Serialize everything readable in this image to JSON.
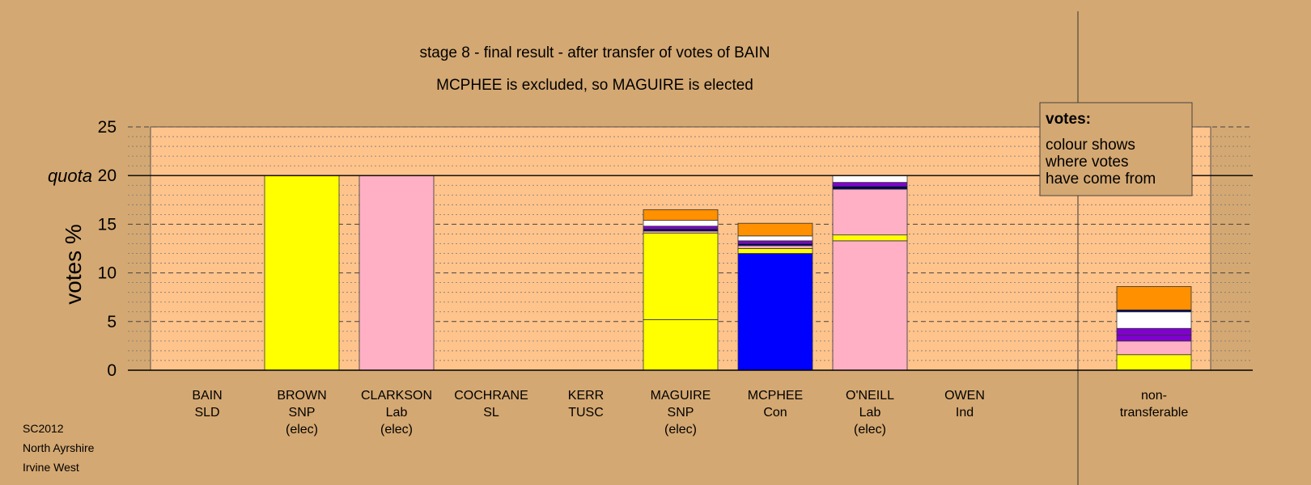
{
  "chart_data": {
    "type": "bar",
    "title": "stage 8 - final result - after transfer of votes of BAIN",
    "subtitle": "MCPHEE is excluded, so MAGUIRE is elected",
    "ylabel": "votes %",
    "quota_label": "quota",
    "quota": 20,
    "ylim": [
      0,
      25
    ],
    "yticks": [
      "0",
      "5",
      "10",
      "15",
      "20",
      "25"
    ],
    "grid": true,
    "colors": {
      "plot_bg": "#ffc48c",
      "SNP": "#ffff00",
      "Lab": "#ffb0c4",
      "Con": "#0000ff",
      "purple": "#8000d0",
      "white": "#ffffff",
      "orange": "#ff9000",
      "navy": "#000060"
    },
    "legend": {
      "title": "votes:",
      "lines": [
        "colour shows",
        "where votes",
        "have come from"
      ],
      "placement": "top-right"
    },
    "candidates": [
      {
        "lines": [
          "BAIN",
          "SLD",
          ""
        ],
        "segments": []
      },
      {
        "lines": [
          "BROWN",
          "SNP",
          "(elec)"
        ],
        "segments": [
          {
            "value": 20,
            "color": "#ffff00"
          }
        ]
      },
      {
        "lines": [
          "CLARKSON",
          "Lab",
          "(elec)"
        ],
        "segments": [
          {
            "value": 20,
            "color": "#ffb0c4"
          }
        ]
      },
      {
        "lines": [
          "COCHRANE",
          "SL",
          ""
        ],
        "segments": []
      },
      {
        "lines": [
          "KERR",
          "TUSC",
          ""
        ],
        "segments": []
      },
      {
        "lines": [
          "MAGUIRE",
          "SNP",
          "(elec)"
        ],
        "segments": [
          {
            "value": 5.2,
            "color": "#ffff00"
          },
          {
            "value": 8.9,
            "color": "#ffff00"
          },
          {
            "value": 0.2,
            "color": "#ffb0c4"
          },
          {
            "value": 0.2,
            "color": "#000060"
          },
          {
            "value": 0.3,
            "color": "#8000d0"
          },
          {
            "value": 0.6,
            "color": "#ffffff"
          },
          {
            "value": 1.1,
            "color": "#ff9000"
          }
        ]
      },
      {
        "lines": [
          "MCPHEE",
          "Con",
          ""
        ],
        "segments": [
          {
            "value": 12.0,
            "color": "#0000ff"
          },
          {
            "value": 0.5,
            "color": "#ffff00"
          },
          {
            "value": 0.3,
            "color": "#ffb0c4"
          },
          {
            "value": 0.2,
            "color": "#000060"
          },
          {
            "value": 0.3,
            "color": "#8000d0"
          },
          {
            "value": 0.5,
            "color": "#ffffff"
          },
          {
            "value": 1.3,
            "color": "#ff9000"
          }
        ]
      },
      {
        "lines": [
          "O'NEILL",
          "Lab",
          "(elec)"
        ],
        "segments": [
          {
            "value": 13.3,
            "color": "#ffb0c4"
          },
          {
            "value": 0.6,
            "color": "#ffff00"
          },
          {
            "value": 4.7,
            "color": "#ffb0c4"
          },
          {
            "value": 0.3,
            "color": "#000060"
          },
          {
            "value": 0.4,
            "color": "#8000d0"
          },
          {
            "value": 0.7,
            "color": "#ffffff"
          }
        ]
      },
      {
        "lines": [
          "OWEN",
          "Ind",
          ""
        ],
        "segments": []
      },
      {
        "lines": [
          "non-",
          "transferable",
          ""
        ],
        "segments": [
          {
            "value": 1.6,
            "color": "#ffff00"
          },
          {
            "value": 1.4,
            "color": "#ffb0c4"
          },
          {
            "value": 0.6,
            "color": "#8000d0"
          },
          {
            "value": 0.7,
            "color": "#8000d0"
          },
          {
            "value": 1.7,
            "color": "#ffffff"
          },
          {
            "value": 0.2,
            "color": "#000060"
          },
          {
            "value": 2.4,
            "color": "#ff9000"
          }
        ]
      }
    ]
  },
  "notes": [
    "SC2012",
    "North Ayrshire",
    "Irvine West"
  ]
}
